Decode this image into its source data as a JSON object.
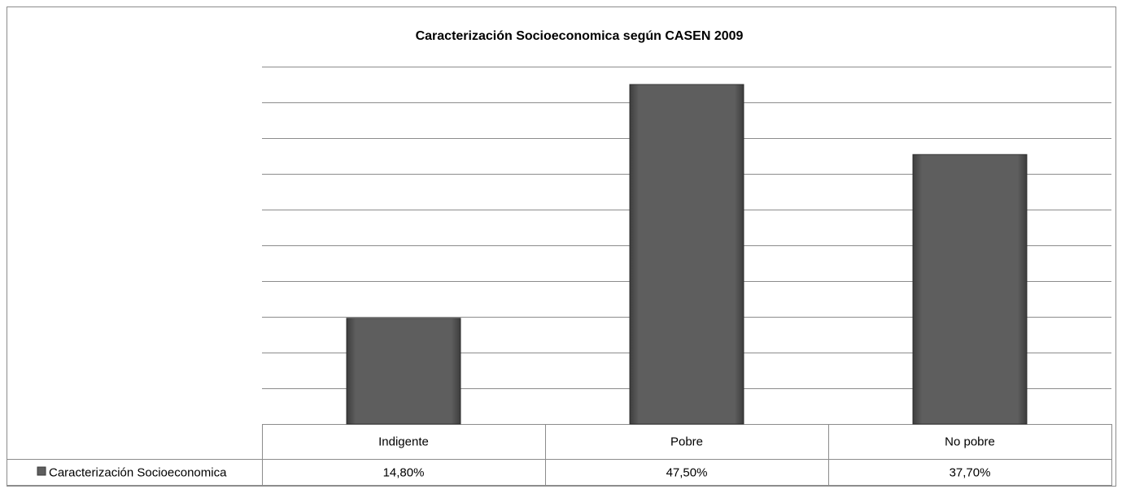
{
  "chart_data": {
    "type": "bar",
    "title": "Caracterización Socioeconomica según CASEN 2009",
    "categories": [
      "Indigente",
      "Pobre",
      "No pobre"
    ],
    "series": [
      {
        "name": "Caracterización Socioeconomica",
        "color": "#5e5e5e",
        "values": [
          14.8,
          47.5,
          37.7
        ],
        "value_labels": [
          "14,80%",
          "47,50%",
          "37,70%"
        ]
      }
    ],
    "ylim": [
      0,
      50
    ],
    "yticks": [
      0,
      5,
      10,
      15,
      20,
      25,
      30,
      35,
      40,
      45,
      50
    ],
    "grid": true
  }
}
